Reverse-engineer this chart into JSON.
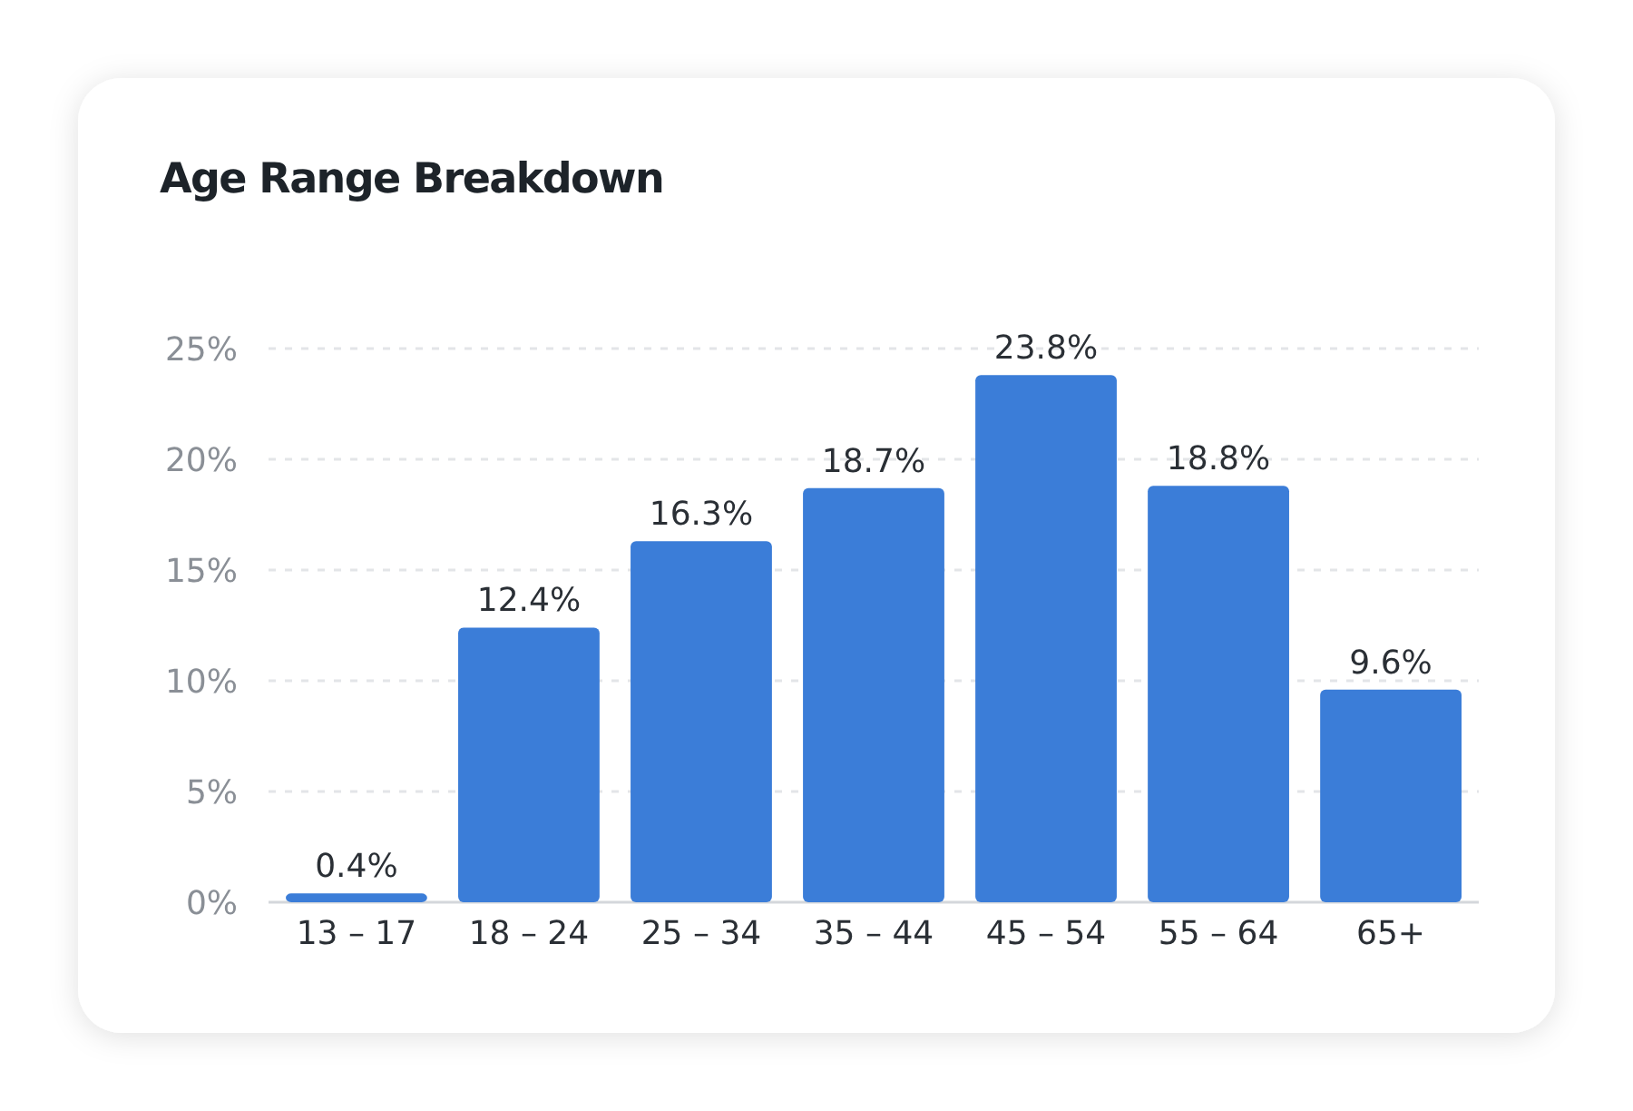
{
  "chart_data": {
    "type": "bar",
    "title": "Age Range Breakdown",
    "categories": [
      "13 – 17",
      "18 – 24",
      "25 – 34",
      "35 – 44",
      "45 – 54",
      "55 – 64",
      "65+"
    ],
    "values": [
      0.4,
      12.4,
      16.3,
      18.7,
      23.8,
      18.8,
      9.6
    ],
    "value_labels": [
      "0.4%",
      "12.4%",
      "16.3%",
      "18.7%",
      "23.8%",
      "18.8%",
      "9.6%"
    ],
    "color": "#3b7dd8",
    "ylim": [
      0,
      25
    ],
    "yticks": [
      {
        "value": 0,
        "label": "0%"
      },
      {
        "value": 5,
        "label": "5%"
      },
      {
        "value": 10,
        "label": "10%"
      },
      {
        "value": 15,
        "label": "15%"
      },
      {
        "value": 20,
        "label": "20%"
      },
      {
        "value": 25,
        "label": "25%"
      }
    ],
    "grid": "y"
  }
}
